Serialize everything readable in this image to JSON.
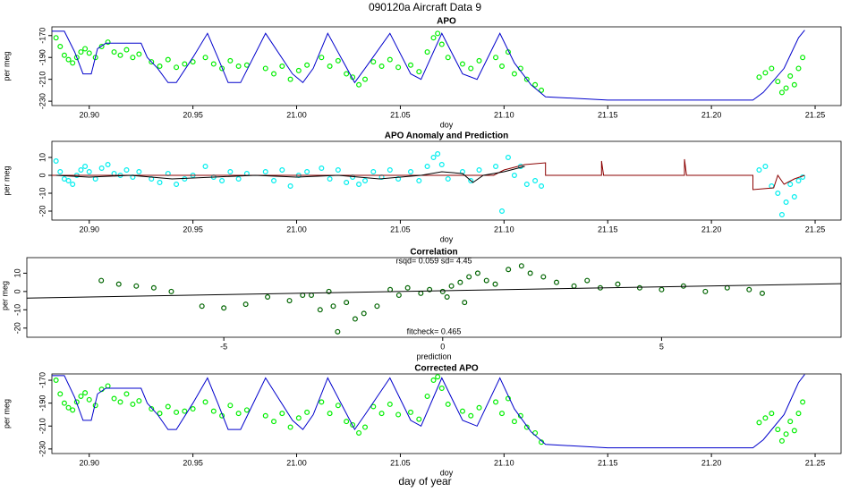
{
  "title": "090120a   Aircraft Data 9",
  "xlabel": "day of year",
  "chart_data": [
    {
      "type": "scatter",
      "title": "APO",
      "xlabel": "doy",
      "ylabel": "per meg",
      "xlim": [
        20.882,
        21.2625
      ],
      "ylim": [
        -234,
        -162
      ],
      "xticks": [
        {
          "value": 20.9,
          "label": "20.90"
        },
        20.95,
        {
          "value": 21.0,
          "label": "21.00"
        },
        21.05,
        {
          "value": 21.1,
          "label": "21.10"
        },
        21.15,
        {
          "value": 21.2,
          "label": "21.20"
        },
        21.25
      ],
      "yticks": [
        -230,
        -210,
        -190,
        -170
      ],
      "series": [
        {
          "mode": "points",
          "color": "#00ee00",
          "x": [
            20.884,
            20.886,
            20.888,
            20.89,
            20.892,
            20.894,
            20.896,
            20.898,
            20.9,
            20.903,
            20.906,
            20.909,
            20.912,
            20.915,
            20.918,
            20.921,
            20.924,
            20.93,
            20.934,
            20.938,
            20.942,
            20.946,
            20.95,
            20.956,
            20.96,
            20.964,
            20.968,
            20.972,
            20.976,
            20.985,
            20.989,
            20.993,
            20.997,
            21.001,
            21.005,
            21.012,
            21.016,
            21.02,
            21.024,
            21.027,
            21.03,
            21.033,
            21.037,
            21.041,
            21.045,
            21.049,
            21.055,
            21.059,
            21.063,
            21.066,
            21.068,
            21.07,
            21.073,
            21.08,
            21.084,
            21.088,
            21.096,
            21.099,
            21.102,
            21.105,
            21.108,
            21.111,
            21.115,
            21.118,
            21.223,
            21.226,
            21.229,
            21.232,
            21.234,
            21.236,
            21.238,
            21.24,
            21.242,
            21.244
          ],
          "y": [
            -172,
            -180,
            -188,
            -192,
            -195,
            -190,
            -185,
            -182,
            -186,
            -190,
            -180,
            -176,
            -185,
            -188,
            -183,
            -190,
            -187,
            -194,
            -198,
            -192,
            -199,
            -196,
            -194,
            -190,
            -196,
            -200,
            -193,
            -198,
            -197,
            -200,
            -205,
            -198,
            -210,
            -202,
            -197,
            -190,
            -198,
            -193,
            -205,
            -208,
            -215,
            -210,
            -194,
            -198,
            -192,
            -199,
            -197,
            -203,
            -185,
            -172,
            -168,
            -178,
            -190,
            -196,
            -200,
            -193,
            -190,
            -198,
            -185,
            -205,
            -200,
            -210,
            -215,
            -220,
            -208,
            -204,
            -200,
            -212,
            -222,
            -218,
            -207,
            -215,
            -200,
            -190
          ]
        },
        {
          "mode": "line",
          "color": "#0000cc",
          "x": [
            20.882,
            20.888,
            20.893,
            20.897,
            20.901,
            20.904,
            20.908,
            20.925,
            20.928,
            20.933,
            20.938,
            20.942,
            20.95,
            20.957,
            20.962,
            20.967,
            20.973,
            20.985,
            20.998,
            21.003,
            21.008,
            21.015,
            21.028,
            21.033,
            21.045,
            21.055,
            21.06,
            21.07,
            21.08,
            21.087,
            21.098,
            21.105,
            21.113,
            21.12,
            21.15,
            21.22,
            21.225,
            21.235,
            21.242,
            21.245
          ],
          "y": [
            -166,
            -166,
            -185,
            -205,
            -205,
            -182,
            -177,
            -177,
            -190,
            -200,
            -213,
            -213,
            -190,
            -168,
            -190,
            -213,
            -213,
            -168,
            -205,
            -213,
            -200,
            -168,
            -213,
            -200,
            -168,
            -205,
            -210,
            -168,
            -205,
            -210,
            -168,
            -195,
            -215,
            -226,
            -229,
            -229,
            -222,
            -200,
            -172,
            -165
          ]
        }
      ]
    },
    {
      "type": "scatter",
      "title": "APO Anomaly and Prediction",
      "xlabel": "doy",
      "ylabel": "per meg",
      "xlim": [
        20.882,
        21.2625
      ],
      "ylim": [
        -25,
        19
      ],
      "xticks": [
        {
          "value": 20.9,
          "label": "20.90"
        },
        20.95,
        {
          "value": 21.0,
          "label": "21.00"
        },
        21.05,
        {
          "value": 21.1,
          "label": "21.10"
        },
        21.15,
        {
          "value": 21.2,
          "label": "21.20"
        },
        21.25
      ],
      "yticks": [
        -20,
        -10,
        0,
        10
      ],
      "series": [
        {
          "mode": "points",
          "color": "#00eeee",
          "x": [
            20.884,
            20.886,
            20.888,
            20.89,
            20.892,
            20.894,
            20.896,
            20.898,
            20.9,
            20.903,
            20.906,
            20.909,
            20.912,
            20.915,
            20.918,
            20.921,
            20.924,
            20.93,
            20.934,
            20.938,
            20.942,
            20.946,
            20.95,
            20.956,
            20.96,
            20.964,
            20.968,
            20.972,
            20.976,
            20.985,
            20.989,
            20.993,
            20.997,
            21.001,
            21.005,
            21.012,
            21.016,
            21.02,
            21.024,
            21.027,
            21.03,
            21.033,
            21.037,
            21.041,
            21.045,
            21.049,
            21.055,
            21.059,
            21.063,
            21.066,
            21.068,
            21.07,
            21.073,
            21.08,
            21.084,
            21.088,
            21.096,
            21.099,
            21.102,
            21.105,
            21.108,
            21.111,
            21.115,
            21.118,
            21.223,
            21.226,
            21.229,
            21.232,
            21.234,
            21.236,
            21.238,
            21.24,
            21.242,
            21.244
          ],
          "y": [
            8,
            2,
            -2,
            -3,
            -5,
            0,
            3,
            5,
            2,
            -2,
            4,
            6,
            1,
            0,
            3,
            -1,
            2,
            -2,
            -4,
            1,
            -5,
            -2,
            0,
            5,
            -1,
            -3,
            2,
            -2,
            1,
            2,
            -3,
            3,
            -6,
            0,
            2,
            4,
            -2,
            3,
            -4,
            -1,
            -5,
            -3,
            2,
            -1,
            3,
            -2,
            2,
            -3,
            5,
            10,
            12,
            6,
            -2,
            2,
            -3,
            3,
            5,
            -20,
            10,
            0,
            5,
            -5,
            -3,
            -6,
            3,
            5,
            -6,
            -10,
            -22,
            -15,
            -5,
            -12,
            -3,
            -1
          ]
        },
        {
          "mode": "line",
          "color": "#8b0000",
          "x": [
            20.882,
            21.095,
            21.1,
            21.11,
            21.12,
            21.12,
            21.147,
            21.147,
            21.148,
            21.187,
            21.187,
            21.188,
            21.22,
            21.22,
            21.23,
            21.232,
            21.235,
            21.24,
            21.245
          ],
          "y": [
            0,
            0,
            3,
            6,
            7,
            0,
            0,
            8,
            0,
            0,
            9,
            0,
            0,
            -8,
            -7,
            0,
            -5,
            -2,
            0
          ]
        },
        {
          "mode": "line",
          "color": "#000000",
          "x": [
            20.884,
            20.9,
            20.92,
            20.94,
            20.96,
            20.98,
            21.0,
            21.02,
            21.04,
            21.06,
            21.07,
            21.08,
            21.085,
            21.09,
            21.1,
            21.11
          ],
          "y": [
            0,
            -1,
            0,
            -2,
            -1,
            0,
            -1,
            0,
            -2,
            0,
            2,
            1,
            -4,
            0,
            2,
            5
          ]
        }
      ]
    },
    {
      "type": "scatter",
      "title": "Correlation",
      "xlabel": "prediction",
      "ylabel": "per meg",
      "annotations": [
        "rsqd= 0.059 sd= 4.45",
        "fitcheck= 0.465"
      ],
      "xlim": [
        -9.5,
        9.1
      ],
      "ylim": [
        -25,
        18.5
      ],
      "xticks": [
        -5,
        0,
        5
      ],
      "yticks": [
        -20,
        -10,
        0,
        10
      ],
      "series": [
        {
          "mode": "points",
          "color": "#006400",
          "x": [
            -7.8,
            -7.4,
            -7.0,
            -6.6,
            -6.2,
            -5.5,
            -5.0,
            -4.5,
            -4.0,
            -3.5,
            -3.0,
            -2.8,
            -2.5,
            -2.2,
            -2.0,
            -1.8,
            -1.5,
            -1.2,
            -1.0,
            -0.8,
            -0.5,
            -0.3,
            0,
            0.2,
            0.4,
            0.6,
            0.8,
            1.0,
            1.2,
            1.5,
            1.8,
            2.0,
            2.3,
            2.6,
            3.0,
            3.3,
            3.6,
            4.0,
            4.5,
            5.0,
            5.5,
            6.0,
            6.5,
            7.0,
            7.3,
            -3.2,
            -2.6,
            -2.4,
            0.1,
            0.5
          ],
          "y": [
            6,
            4,
            3,
            2,
            0,
            -8,
            -9,
            -7,
            -3,
            -5,
            -2,
            -10,
            -8,
            -6,
            -15,
            -12,
            -8,
            1,
            -2,
            2,
            -1,
            1,
            0,
            3,
            5,
            8,
            10,
            6,
            4,
            12,
            14,
            10,
            8,
            5,
            3,
            6,
            2,
            4,
            2,
            1,
            3,
            0,
            2,
            1,
            -1,
            -2,
            0,
            -22,
            -3,
            -6
          ]
        },
        {
          "mode": "line",
          "color": "#000000",
          "x": [
            -9.5,
            9.1
          ],
          "y": [
            -3.6,
            4.3
          ]
        }
      ]
    },
    {
      "type": "scatter",
      "title": "Corrected APO",
      "xlabel": "doy",
      "ylabel": "per meg",
      "xlim": [
        20.882,
        21.2625
      ],
      "ylim": [
        -234,
        -164.5
      ],
      "xticks": [
        {
          "value": 20.9,
          "label": "20.90"
        },
        20.95,
        {
          "value": 21.0,
          "label": "21.00"
        },
        21.05,
        {
          "value": 21.1,
          "label": "21.10"
        },
        21.15,
        {
          "value": 21.2,
          "label": "21.20"
        },
        21.25
      ],
      "yticks": [
        -230,
        -210,
        -190,
        -170
      ],
      "series": [
        {
          "mode": "points",
          "color": "#00ee00",
          "x": [
            20.884,
            20.886,
            20.888,
            20.89,
            20.892,
            20.894,
            20.896,
            20.898,
            20.9,
            20.903,
            20.906,
            20.909,
            20.912,
            20.915,
            20.918,
            20.921,
            20.924,
            20.93,
            20.934,
            20.938,
            20.942,
            20.946,
            20.95,
            20.956,
            20.96,
            20.964,
            20.968,
            20.972,
            20.976,
            20.985,
            20.989,
            20.993,
            20.997,
            21.001,
            21.005,
            21.012,
            21.016,
            21.02,
            21.024,
            21.027,
            21.03,
            21.033,
            21.037,
            21.041,
            21.045,
            21.049,
            21.055,
            21.059,
            21.063,
            21.066,
            21.068,
            21.07,
            21.073,
            21.08,
            21.084,
            21.088,
            21.096,
            21.099,
            21.102,
            21.105,
            21.108,
            21.111,
            21.115,
            21.118,
            21.223,
            21.226,
            21.229,
            21.232,
            21.234,
            21.236,
            21.238,
            21.24,
            21.242,
            21.244
          ],
          "y": [
            -170,
            -182,
            -190,
            -194,
            -196,
            -189,
            -184,
            -181,
            -187,
            -192,
            -178,
            -175,
            -186,
            -189,
            -182,
            -191,
            -188,
            -195,
            -199,
            -193,
            -198,
            -197,
            -195,
            -189,
            -197,
            -201,
            -192,
            -199,
            -196,
            -201,
            -206,
            -199,
            -211,
            -203,
            -198,
            -189,
            -199,
            -192,
            -206,
            -209,
            -216,
            -211,
            -193,
            -199,
            -191,
            -200,
            -198,
            -204,
            -184,
            -170,
            -167,
            -177,
            -191,
            -197,
            -201,
            -194,
            -189,
            -199,
            -186,
            -206,
            -201,
            -211,
            -216,
            -224,
            -207,
            -203,
            -199,
            -213,
            -223,
            -217,
            -206,
            -214,
            -199,
            -189
          ]
        },
        {
          "mode": "line",
          "color": "#0000cc",
          "x": [
            20.882,
            20.888,
            20.893,
            20.897,
            20.901,
            20.904,
            20.908,
            20.925,
            20.928,
            20.933,
            20.938,
            20.942,
            20.95,
            20.957,
            20.962,
            20.967,
            20.973,
            20.985,
            20.998,
            21.003,
            21.008,
            21.015,
            21.028,
            21.033,
            21.045,
            21.055,
            21.06,
            21.07,
            21.08,
            21.087,
            21.098,
            21.105,
            21.113,
            21.12,
            21.15,
            21.22,
            21.225,
            21.235,
            21.242,
            21.245
          ],
          "y": [
            -166,
            -166,
            -185,
            -205,
            -205,
            -182,
            -177,
            -177,
            -190,
            -200,
            -213,
            -213,
            -190,
            -168,
            -190,
            -213,
            -213,
            -168,
            -205,
            -213,
            -200,
            -168,
            -213,
            -200,
            -168,
            -205,
            -210,
            -168,
            -205,
            -210,
            -168,
            -195,
            -215,
            -226,
            -229,
            -229,
            -222,
            -200,
            -172,
            -165
          ]
        }
      ]
    }
  ]
}
